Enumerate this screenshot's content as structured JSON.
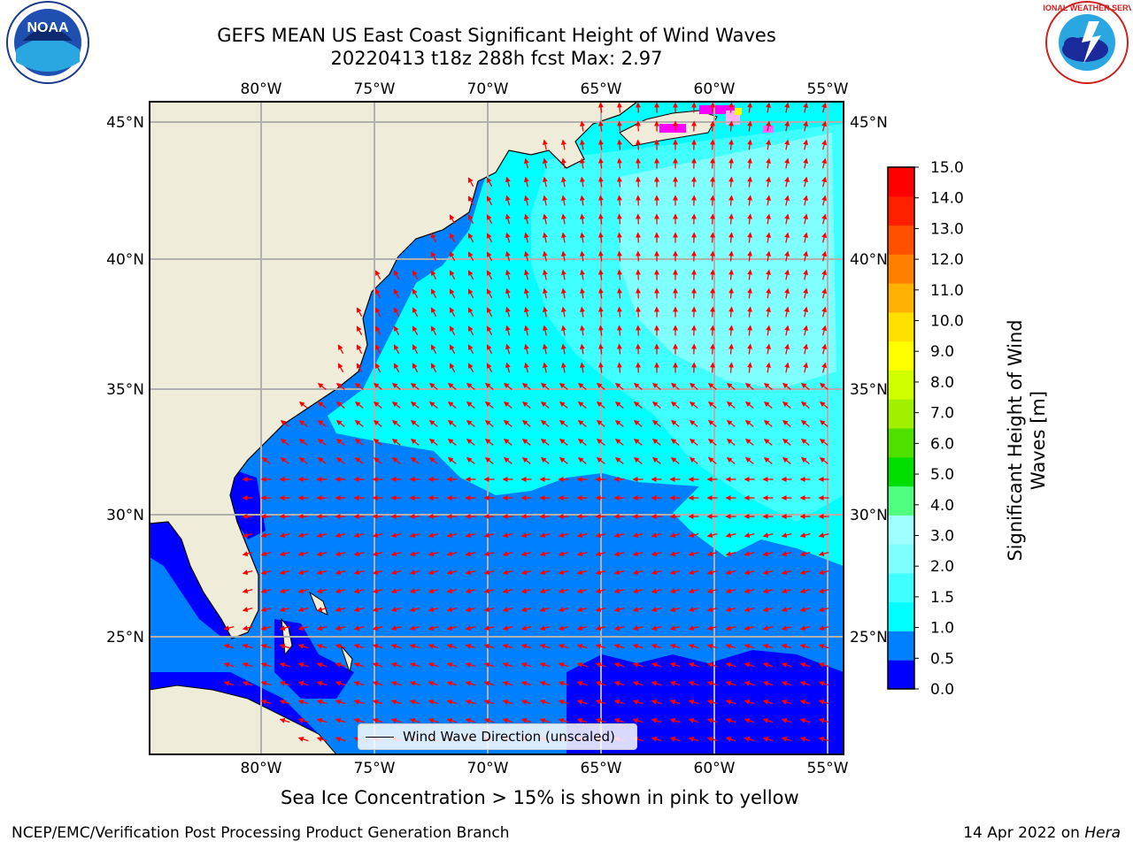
{
  "title": {
    "line1": "GEFS MEAN US East Coast Significant Height of Wind Waves",
    "line2": "20220413 t18z 288h fcst   Max: 2.97"
  },
  "logos": {
    "left": "noara-logo",
    "left_text": "NOAA",
    "right": "nws-logo",
    "right_text": "NATIONAL WEATHER SERVICE"
  },
  "map": {
    "lon_labels": [
      "80°W",
      "75°W",
      "70°W",
      "65°W",
      "60°W",
      "55°W"
    ],
    "lat_labels_left": [
      "45°N",
      "40°N",
      "35°N",
      "30°N",
      "25°N"
    ],
    "lat_labels_right": [
      "45°N",
      "40°N",
      "35°N",
      "30°N",
      "25°N"
    ],
    "colors": {
      "land": "#efedda",
      "water_dark": "#0000ff",
      "water_mid": "#0080ff",
      "water_light": "#00ffff",
      "water_pale": "#80ffff",
      "grid": "#b0b0b0",
      "arrow": "#ff0000",
      "ice_pink": "#ff00ff"
    }
  },
  "legend": {
    "label": "Wind Wave Direction (unscaled)"
  },
  "colorbar": {
    "title": "Significant Height of Wind Waves [m]",
    "tick_labels": [
      "0.0",
      "0.5",
      "1.0",
      "1.5",
      "2.0",
      "3.0",
      "4.0",
      "5.0",
      "6.0",
      "7.0",
      "8.0",
      "9.0",
      "10.0",
      "11.0",
      "12.0",
      "13.0",
      "14.0",
      "15.0"
    ],
    "colors": [
      "#0000ff",
      "#0080ff",
      "#00ffff",
      "#40ffff",
      "#80ffff",
      "#a0ffff",
      "#50ff80",
      "#00e000",
      "#50e000",
      "#a0f000",
      "#d0ff00",
      "#ffff00",
      "#ffe000",
      "#ffb000",
      "#ff8000",
      "#ff5000",
      "#ff2000",
      "#ff0000"
    ]
  },
  "caption": "Sea Ice Concentration > 15% is shown in pink to yellow",
  "footer": {
    "left": "NCEP/EMC/Verification Post Processing Product Generation Branch",
    "right_date": "14 Apr 2022 on ",
    "right_host": "Hera"
  }
}
